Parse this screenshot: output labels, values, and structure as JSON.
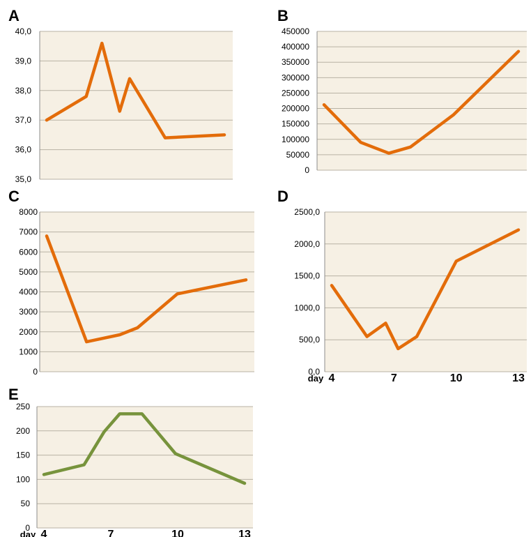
{
  "colors": {
    "orange": "#E36C0A",
    "green": "#77933C",
    "plot_bg": "#F6F0E4",
    "grid": "#B8B2A4",
    "axis": "#8C8C8C",
    "text": "#000000"
  },
  "chart_data": [
    {
      "panel": "A",
      "type": "line",
      "ylim": [
        35.0,
        40.0
      ],
      "yticks": [
        "35,0",
        "36,0",
        "37,0",
        "38,0",
        "39,0",
        "40,0"
      ],
      "grid": true,
      "color": "orange",
      "x": [
        4,
        6,
        6.8,
        7.7,
        8.2,
        10,
        13
      ],
      "values": [
        37.0,
        37.8,
        39.6,
        37.3,
        38.4,
        36.4,
        36.5
      ]
    },
    {
      "panel": "B",
      "type": "line",
      "ylim": [
        0,
        450000
      ],
      "yticks": [
        "0",
        "50000",
        "100000",
        "150000",
        "200000",
        "250000",
        "300000",
        "350000",
        "400000",
        "450000"
      ],
      "grid": true,
      "color": "orange",
      "x": [
        4,
        5.7,
        7,
        8,
        10,
        13
      ],
      "values": [
        212000,
        90000,
        55000,
        75000,
        180000,
        385000
      ]
    },
    {
      "panel": "C",
      "type": "line",
      "ylim": [
        0,
        8000
      ],
      "yticks": [
        "0",
        "1000",
        "2000",
        "3000",
        "4000",
        "5000",
        "6000",
        "7000",
        "8000"
      ],
      "grid": true,
      "color": "orange",
      "x": [
        4,
        5.8,
        7.3,
        8.1,
        9.9,
        13
      ],
      "values": [
        6800,
        1500,
        1850,
        2200,
        3900,
        4600
      ]
    },
    {
      "panel": "D",
      "type": "line",
      "ylim": [
        0,
        2500
      ],
      "yticks": [
        "0,0",
        "500,0",
        "1000,0",
        "1500,0",
        "2000,0",
        "2500,0"
      ],
      "grid": true,
      "color": "orange",
      "x": [
        4,
        5.7,
        6.6,
        7.2,
        8.1,
        10,
        13
      ],
      "values": [
        1350,
        550,
        760,
        360,
        550,
        1730,
        2220
      ]
    },
    {
      "panel": "E",
      "type": "line",
      "ylim": [
        0,
        250
      ],
      "yticks": [
        "0",
        "50",
        "100",
        "150",
        "200",
        "250"
      ],
      "grid": true,
      "color": "green",
      "x": [
        4,
        5.8,
        6.7,
        7.4,
        8.4,
        9.9,
        13
      ],
      "values": [
        110,
        130,
        198,
        235,
        235,
        153,
        92
      ]
    }
  ],
  "x_axis": {
    "label": "day",
    "ticks": [
      "4",
      "7",
      "10",
      "13"
    ]
  }
}
